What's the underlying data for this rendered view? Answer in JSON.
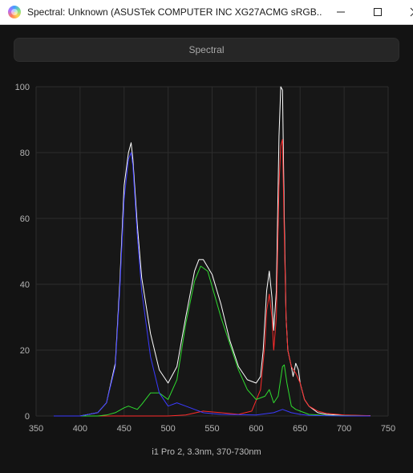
{
  "window": {
    "title": "Spectral: Unknown (ASUSTek COMPUTER INC XG27ACMG sRGB..."
  },
  "tab": {
    "label": "Spectral"
  },
  "caption": "i1 Pro 2, 3.3nm, 370-730nm",
  "colors": {
    "white": "#ffffff",
    "red": "#ff2b2b",
    "green": "#2fdc2f",
    "blue": "#3a3aff"
  },
  "chart_data": {
    "type": "line",
    "xlim": [
      350,
      750
    ],
    "ylim": [
      0,
      100
    ],
    "xticks": [
      350,
      400,
      450,
      500,
      550,
      600,
      650,
      700,
      750
    ],
    "yticks": [
      0,
      20,
      40,
      60,
      80,
      100
    ],
    "grid": true,
    "series": [
      {
        "color": "#ffffff",
        "x": [
          370,
          400,
          420,
          430,
          440,
          445,
          450,
          455,
          458,
          460,
          465,
          470,
          480,
          490,
          500,
          510,
          520,
          530,
          535,
          540,
          550,
          560,
          570,
          580,
          590,
          600,
          605,
          608,
          612,
          615,
          618,
          620,
          623,
          626,
          628,
          630,
          632,
          634,
          636,
          640,
          642,
          645,
          648,
          650,
          655,
          660,
          670,
          680,
          700,
          730
        ],
        "y": [
          0,
          0,
          1,
          4,
          16,
          40,
          70,
          80,
          83,
          78,
          58,
          42,
          25,
          14,
          10,
          15,
          30,
          44,
          47.5,
          47.5,
          43,
          34,
          23,
          15,
          11,
          10,
          12,
          20,
          38,
          44,
          36,
          26,
          38,
          85,
          100,
          99,
          60,
          30,
          20,
          15,
          12,
          16,
          14,
          10,
          5,
          3,
          1,
          0.5,
          0.2,
          0.1
        ]
      },
      {
        "color": "#ff2b2b",
        "x": [
          370,
          500,
          520,
          540,
          560,
          580,
          595,
          605,
          610,
          612,
          615,
          618,
          620,
          623,
          626,
          628,
          630,
          632,
          634,
          636,
          640,
          645,
          650,
          655,
          660,
          670,
          680,
          700,
          730
        ],
        "y": [
          0,
          0,
          0.3,
          1.5,
          1,
          0.5,
          1.5,
          8,
          22,
          32,
          37,
          30,
          20,
          30,
          70,
          82,
          84,
          55,
          30,
          20,
          15,
          13,
          10,
          5,
          3,
          1.5,
          0.8,
          0.3,
          0.1
        ]
      },
      {
        "color": "#2fdc2f",
        "x": [
          370,
          420,
          430,
          440,
          450,
          455,
          460,
          465,
          470,
          480,
          490,
          500,
          510,
          520,
          530,
          537,
          545,
          560,
          580,
          590,
          600,
          610,
          615,
          620,
          625,
          630,
          632,
          635,
          640,
          645,
          650,
          660,
          680,
          700,
          730
        ],
        "y": [
          0,
          0,
          0.3,
          1,
          2.5,
          3,
          2.5,
          2,
          3.5,
          7,
          7,
          5,
          11,
          28,
          41,
          45.5,
          44,
          30,
          14,
          8,
          5,
          6,
          8,
          4,
          6,
          15,
          15.5,
          10,
          3,
          2,
          1.5,
          0.5,
          0.2,
          0.1,
          0
        ]
      },
      {
        "color": "#3a3aff",
        "x": [
          370,
          400,
          420,
          430,
          440,
          445,
          450,
          455,
          458,
          460,
          465,
          470,
          480,
          490,
          500,
          510,
          520,
          530,
          540,
          560,
          600,
          620,
          630,
          640,
          650,
          660,
          700,
          730
        ],
        "y": [
          0,
          0,
          1,
          4,
          15,
          38,
          66,
          78,
          80,
          76,
          55,
          38,
          18,
          7,
          3,
          4,
          3,
          2,
          1,
          0.5,
          0.3,
          1,
          2,
          1,
          0.5,
          0.2,
          0,
          0
        ]
      }
    ]
  }
}
